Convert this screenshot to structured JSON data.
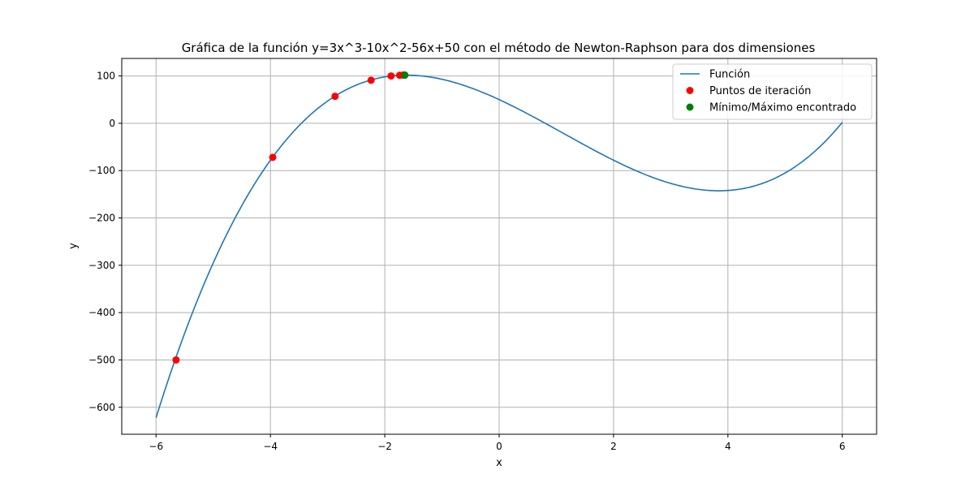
{
  "chart_data": {
    "type": "line",
    "title": "Gráfica de la función y=3x^3-10x^2-56x+50 con el método de Newton-Raphson para dos dimensiones",
    "xlabel": "x",
    "ylabel": "y",
    "xlim": [
      -6.6,
      6.6
    ],
    "ylim": [
      -657,
      137
    ],
    "xticks": [
      -6,
      -4,
      -2,
      0,
      2,
      4,
      6
    ],
    "xtick_labels": [
      "−6",
      "−4",
      "−2",
      "0",
      "2",
      "4",
      "6"
    ],
    "yticks": [
      100,
      0,
      -100,
      -200,
      -300,
      -400,
      -500,
      -600
    ],
    "ytick_labels": [
      "100",
      "0",
      "−100",
      "−200",
      "−300",
      "−400",
      "−500",
      "−600"
    ],
    "grid": true,
    "legend_position": "top-right",
    "series": [
      {
        "name": "Función",
        "kind": "line",
        "color": "#1f77b4",
        "function": "3x^3-10x^2-56x+50",
        "x_range": [
          -6,
          6
        ]
      },
      {
        "name": "Puntos de iteración",
        "kind": "scatter",
        "color": "#ff0000",
        "points": [
          {
            "x": -5.65,
            "y": -500
          },
          {
            "x": -3.96,
            "y": -72
          },
          {
            "x": -2.87,
            "y": 57
          },
          {
            "x": -2.24,
            "y": 91
          },
          {
            "x": -1.89,
            "y": 100
          },
          {
            "x": -1.74,
            "y": 101.5
          },
          {
            "x": -1.68,
            "y": 101.8
          },
          {
            "x": -1.66,
            "y": 101.8
          },
          {
            "x": -1.65,
            "y": 101.8
          }
        ]
      },
      {
        "name": "Mínimo/Máximo encontrado",
        "kind": "scatter",
        "color": "#008000",
        "points": [
          {
            "x": -1.65,
            "y": 101.8
          }
        ]
      }
    ]
  }
}
